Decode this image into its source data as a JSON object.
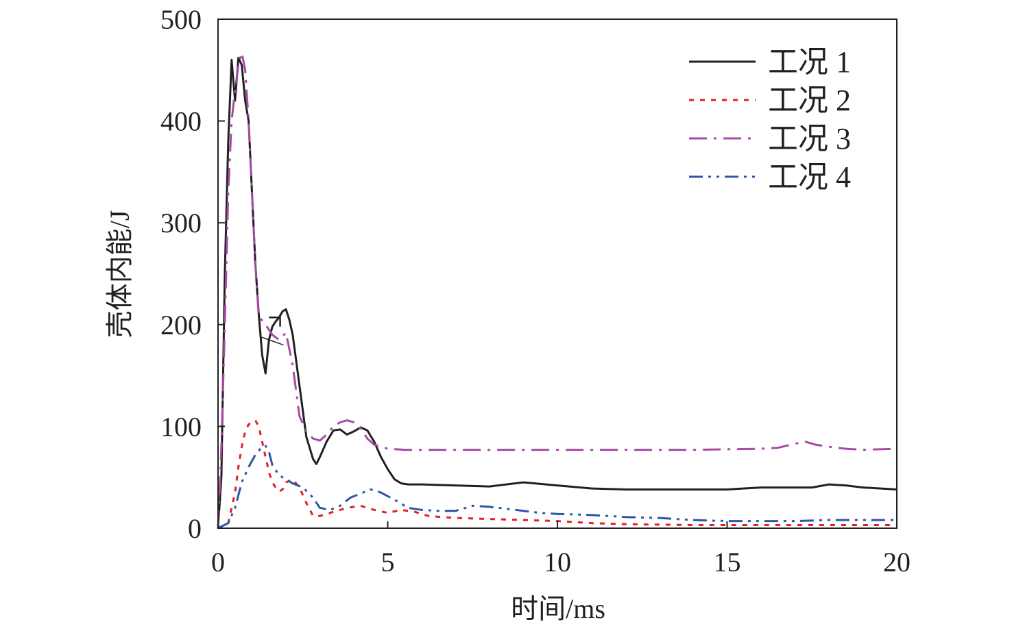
{
  "chart_data": {
    "type": "line",
    "title": "",
    "xlabel": "时间/ms",
    "ylabel": "壳体内能/J",
    "xlim": [
      0,
      20
    ],
    "ylim": [
      0,
      500
    ],
    "xticks": [
      "0",
      "5",
      "10",
      "15",
      "20"
    ],
    "yticks": [
      "0",
      "100",
      "200",
      "300",
      "400",
      "500"
    ],
    "grid": false,
    "legend_position": "top-right",
    "series": [
      {
        "name": "工况 1",
        "color": "#231f20",
        "style": "solid",
        "x": [
          0,
          0.1,
          0.2,
          0.3,
          0.4,
          0.5,
          0.6,
          0.7,
          0.8,
          0.9,
          1.0,
          1.1,
          1.2,
          1.3,
          1.4,
          1.5,
          1.6,
          1.7,
          1.8,
          1.9,
          2.0,
          2.1,
          2.2,
          2.4,
          2.6,
          2.8,
          2.9,
          3.0,
          3.2,
          3.4,
          3.6,
          3.8,
          4.0,
          4.2,
          4.4,
          4.6,
          4.8,
          5.0,
          5.2,
          5.4,
          5.6,
          6.0,
          7.0,
          8.0,
          9.0,
          10.0,
          11.0,
          12.0,
          13.0,
          14.0,
          15.0,
          15.5,
          16.0,
          16.5,
          17.0,
          17.5,
          18.0,
          18.5,
          19.0,
          19.5,
          20.0
        ],
        "values": [
          0,
          50,
          250,
          380,
          460,
          420,
          462,
          455,
          420,
          400,
          330,
          260,
          210,
          170,
          152,
          185,
          198,
          203,
          207,
          213,
          215,
          205,
          190,
          140,
          90,
          68,
          63,
          70,
          85,
          96,
          97,
          92,
          95,
          99,
          96,
          85,
          70,
          58,
          48,
          44,
          43,
          43,
          42,
          41,
          45,
          42,
          39,
          38,
          38,
          38,
          38,
          39,
          40,
          40,
          40,
          40,
          43,
          42,
          40,
          39,
          38
        ]
      },
      {
        "name": "工况 2",
        "color": "#e31e24",
        "style": "dotted",
        "x": [
          0,
          0.3,
          0.5,
          0.6,
          0.7,
          0.8,
          0.9,
          1.0,
          1.1,
          1.2,
          1.3,
          1.4,
          1.5,
          1.6,
          1.7,
          1.8,
          1.9,
          2.0,
          2.2,
          2.4,
          2.6,
          2.8,
          3.0,
          3.4,
          3.8,
          4.2,
          4.6,
          5.0,
          5.4,
          5.8,
          6.2,
          7.0,
          8.0,
          9.0,
          10.0,
          11.0,
          12.0,
          14.0,
          16.0,
          18.0,
          20.0
        ],
        "values": [
          0,
          5,
          35,
          60,
          80,
          95,
          102,
          104,
          106,
          100,
          85,
          70,
          55,
          45,
          40,
          36,
          38,
          45,
          48,
          40,
          25,
          12,
          12,
          16,
          20,
          22,
          18,
          15,
          18,
          16,
          12,
          10,
          9,
          8,
          7,
          5,
          4,
          3,
          3,
          3,
          3
        ]
      },
      {
        "name": "工况 3",
        "color": "#a54ba5",
        "style": "dash-dot",
        "x": [
          0,
          0.1,
          0.2,
          0.3,
          0.4,
          0.5,
          0.6,
          0.7,
          0.8,
          0.9,
          1.0,
          1.1,
          1.2,
          1.4,
          1.6,
          1.8,
          2.0,
          2.2,
          2.4,
          2.6,
          2.8,
          3.0,
          3.2,
          3.4,
          3.6,
          3.8,
          4.0,
          4.2,
          4.4,
          4.6,
          5.0,
          5.5,
          6.0,
          8.0,
          10.0,
          12.0,
          14.0,
          16.0,
          16.5,
          17.0,
          17.3,
          17.6,
          18.0,
          18.5,
          19.0,
          20.0
        ],
        "values": [
          0,
          80,
          200,
          330,
          400,
          430,
          455,
          467,
          450,
          400,
          330,
          260,
          208,
          200,
          190,
          185,
          192,
          160,
          110,
          95,
          88,
          86,
          92,
          100,
          104,
          106,
          104,
          98,
          88,
          82,
          78,
          77,
          77,
          77,
          77,
          77,
          77,
          78,
          79,
          83,
          85,
          82,
          80,
          78,
          77,
          78
        ]
      },
      {
        "name": "工况 4",
        "color": "#2e56a6",
        "style": "dash-dot-dot",
        "x": [
          0,
          0.3,
          0.5,
          0.7,
          0.9,
          1.1,
          1.3,
          1.4,
          1.5,
          1.6,
          1.8,
          2.0,
          2.2,
          2.5,
          2.8,
          3.0,
          3.3,
          3.6,
          3.9,
          4.2,
          4.5,
          4.8,
          5.2,
          5.6,
          6.0,
          6.5,
          7.0,
          7.5,
          8.0,
          8.5,
          9.0,
          9.5,
          10.0,
          11.0,
          12.0,
          13.0,
          14.0,
          15.0,
          16.0,
          17.0,
          18.0,
          19.0,
          20.0
        ],
        "values": [
          0,
          5,
          20,
          45,
          60,
          72,
          80,
          81,
          75,
          62,
          52,
          48,
          44,
          40,
          30,
          20,
          18,
          22,
          30,
          34,
          38,
          35,
          28,
          20,
          18,
          17,
          17,
          22,
          21,
          19,
          17,
          15,
          14,
          13,
          11,
          10,
          8,
          7,
          7,
          7,
          8,
          8,
          8
        ]
      }
    ],
    "annotations": [
      {
        "text": "",
        "note": "small bracket mark near x≈1.8, y≈205"
      }
    ]
  }
}
